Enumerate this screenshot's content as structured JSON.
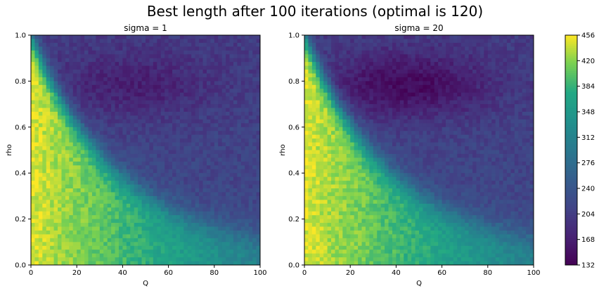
{
  "figure": {
    "title": "Best length after 100 iterations (optimal is 120)"
  },
  "chart_data": [
    {
      "type": "heatmap",
      "title": "sigma = 1",
      "xlabel": "Q",
      "ylabel": "rho",
      "xlim": [
        0,
        100
      ],
      "ylim": [
        0,
        1.0
      ],
      "x_ticks": [
        "0",
        "20",
        "40",
        "60",
        "80",
        "100"
      ],
      "y_ticks": [
        "0.0",
        "0.2",
        "0.4",
        "0.6",
        "0.8",
        "1.0"
      ],
      "colormap": "viridis",
      "value_range": [
        132,
        456
      ],
      "description_values": {
        "low_Q_high_rho": 456,
        "valley_near_rho_0.8_Q_40_to_60": 170,
        "high_Q_low_rho": 300
      }
    },
    {
      "type": "heatmap",
      "title": "sigma = 20",
      "xlabel": "Q",
      "ylabel": "rho",
      "xlim": [
        0,
        100
      ],
      "ylim": [
        0,
        1.0
      ],
      "x_ticks": [
        "0",
        "20",
        "40",
        "60",
        "80",
        "100"
      ],
      "y_ticks": [
        "0.0",
        "0.2",
        "0.4",
        "0.6",
        "0.8",
        "1.0"
      ],
      "colormap": "viridis",
      "value_range": [
        132,
        456
      ],
      "description_values": {
        "low_Q_high_rho": 456,
        "valley_near_rho_0.8_Q_40_to_60": 150,
        "high_Q_low_rho": 300
      }
    }
  ],
  "colorbar": {
    "ticks": [
      "132",
      "168",
      "204",
      "240",
      "276",
      "312",
      "348",
      "384",
      "420",
      "456"
    ],
    "min": 132,
    "max": 456,
    "colormap": "viridis"
  }
}
